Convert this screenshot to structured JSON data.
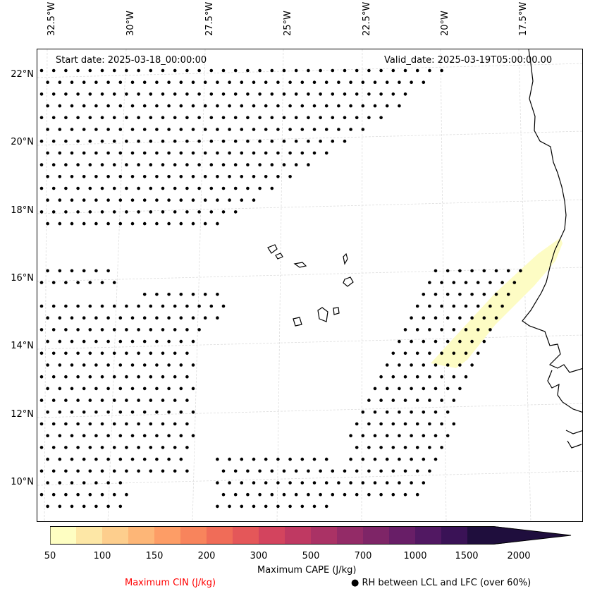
{
  "header": {
    "start_label": "Start date: 2025-03-18_00:00:00",
    "valid_label": "Valid_date: 2025-03-19T05:00:00.00"
  },
  "map": {
    "lon_labels": [
      "32.5°W",
      "30°W",
      "27.5°W",
      "25°W",
      "22.5°W",
      "20°W",
      "17.5°W"
    ],
    "lat_labels": [
      "22°N",
      "20°N",
      "18°N",
      "16°N",
      "14°N",
      "12°N",
      "10°N"
    ],
    "extent": {
      "lon_min": -33.0,
      "lon_max": -16.4,
      "lat_min": 8.9,
      "lat_max": 22.8
    },
    "cape_fill_color": "#fdfcc4",
    "coast_color": "#000000",
    "grid": true,
    "cape_region": "narrow band near 13.5°N–17°N, 20°W–17.5°W",
    "rh_dot_regions": [
      "north block 18°N–22.2°N, 32.5°W–20°W",
      "western central band 14.5°N–16.5°N, 32.5°W–24.5°W",
      "southwest block 9°N–14°N, 32.5°W–26°W",
      "diagonal band 9°N–16.5°N, 24°W–17.5°W"
    ]
  },
  "colorbar": {
    "title": "Maximum CAPE (J/kg)",
    "tick_labels": [
      "50",
      "100",
      "150",
      "200",
      "300",
      "500",
      "700",
      "1000",
      "1500",
      "2000"
    ],
    "colors": [
      "#fefec2",
      "#fde7a6",
      "#fdce8d",
      "#fdb677",
      "#fd9d66",
      "#f8845c",
      "#f06c58",
      "#e45759",
      "#d3445e",
      "#bf3962",
      "#aa3265",
      "#932b67",
      "#7e2567",
      "#681e67",
      "#511862",
      "#3a1256",
      "#1f0e3d"
    ]
  },
  "legend": {
    "cin_label": "Maximum CIN (J/kg)",
    "cin_color": "#ff0000",
    "rh_marker": "●",
    "rh_label": "RH between LCL and LFC (over 60%)"
  }
}
